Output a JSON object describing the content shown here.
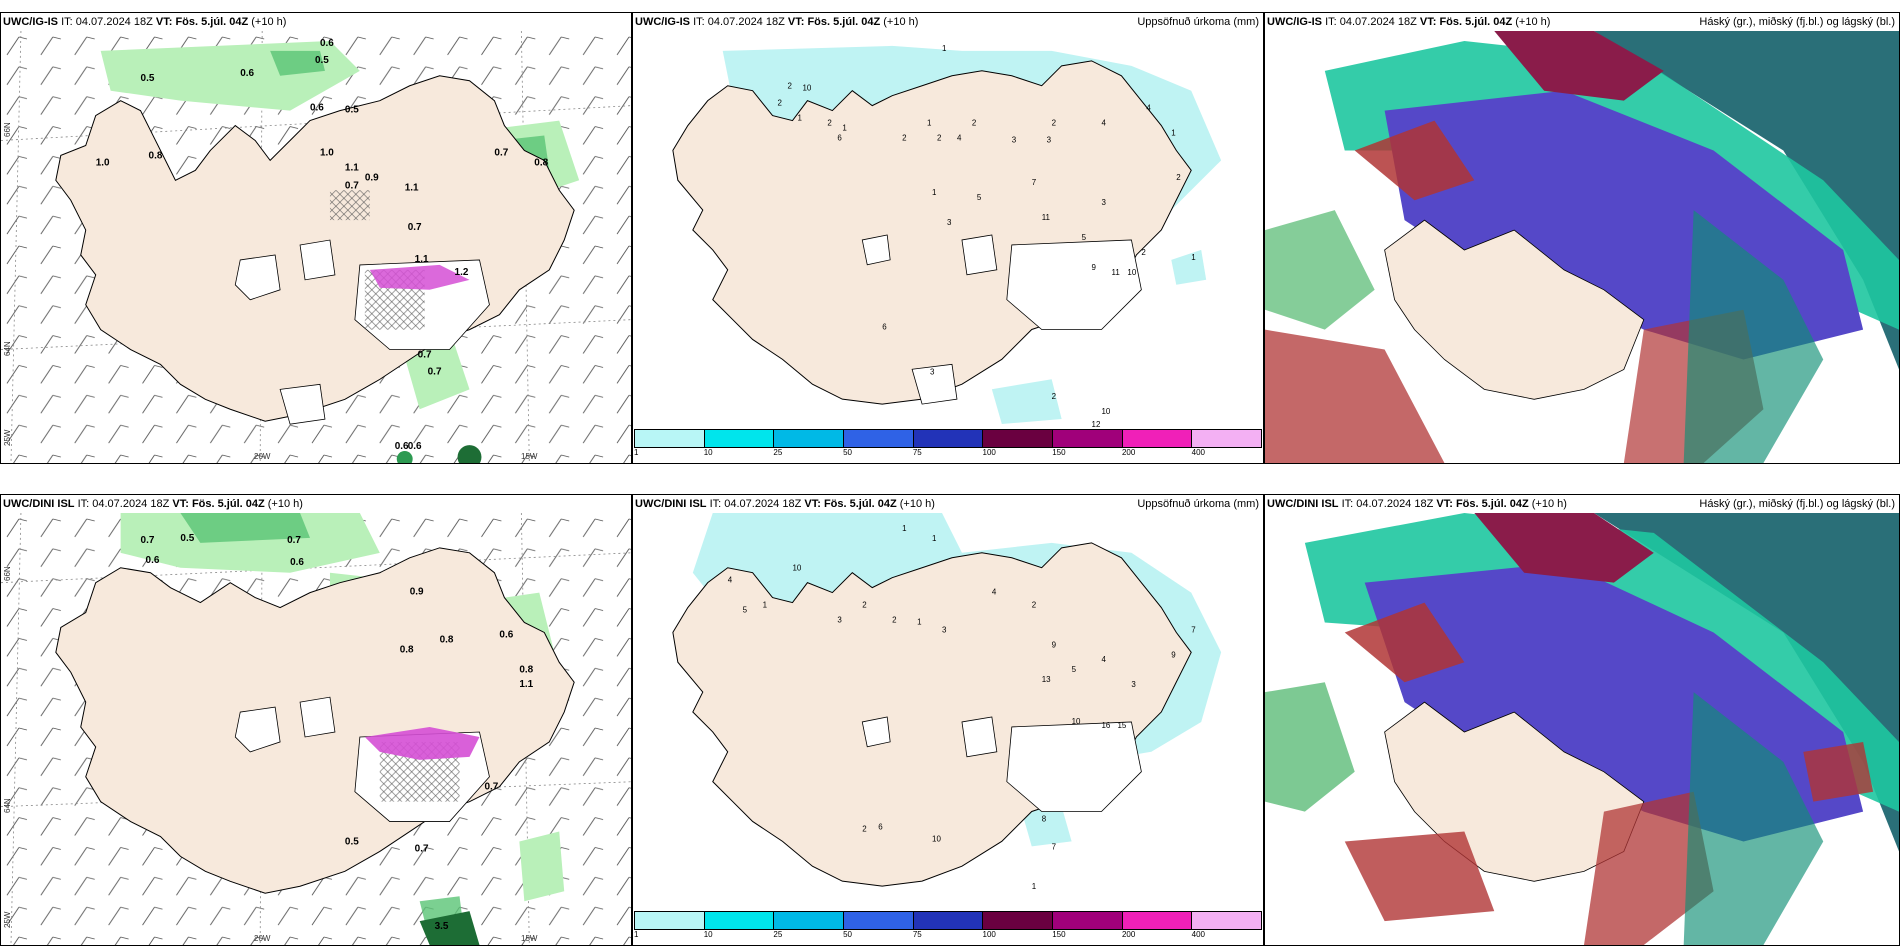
{
  "panels": [
    {
      "model": "UWC/IG-IS",
      "it_label": "IT:",
      "it": "04.07.2024 18Z",
      "vt_label": "VT:",
      "vt": "Fös. 5.júl. 04Z",
      "lead": "(+10 h)",
      "right": ""
    },
    {
      "model": "UWC/IG-IS",
      "it_label": "IT:",
      "it": "04.07.2024 18Z",
      "vt_label": "VT:",
      "vt": "Fös. 5.júl. 04Z",
      "lead": "(+10 h)",
      "right": "Uppsöfnuð úrkoma (mm)"
    },
    {
      "model": "UWC/IG-IS",
      "it_label": "IT:",
      "it": "04.07.2024 18Z",
      "vt_label": "VT:",
      "vt": "Fös. 5.júl. 04Z",
      "lead": "(+10 h)",
      "right": "Háský (gr.), miðský (fj.bl.) og lágský (bl.)"
    },
    {
      "model": "UWC/DINI ISL",
      "it_label": "IT:",
      "it": "04.07.2024 18Z",
      "vt_label": "VT:",
      "vt": "Fös. 5.júl. 04Z",
      "lead": "(+10 h)",
      "right": ""
    },
    {
      "model": "UWC/DINI ISL",
      "it_label": "IT:",
      "it": "04.07.2024 18Z",
      "vt_label": "VT:",
      "vt": "Fös. 5.júl. 04Z",
      "lead": "(+10 h)",
      "right": "Uppsöfnuð úrkoma (mm)"
    },
    {
      "model": "UWC/DINI ISL",
      "it_label": "IT:",
      "it": "04.07.2024 18Z",
      "vt_label": "VT:",
      "vt": "Fös. 5.júl. 04Z",
      "lead": "(+10 h)",
      "right": "Háský (gr.), miðský (fj.bl.) og lágský (bl.)"
    }
  ],
  "axes": {
    "lat_66": "66N",
    "lat_64": "64N",
    "lon_25": "25W",
    "lon_20": "20W",
    "lon_15": "15W"
  },
  "colorbar": {
    "ticks": [
      "1",
      "10",
      "25",
      "50",
      "75",
      "100",
      "150",
      "200",
      "400"
    ],
    "colors": [
      "#b8f6f6",
      "#00e5ec",
      "#00b9e6",
      "#2f62e6",
      "#2233b8",
      "#6a0040",
      "#a0007a",
      "#f020b8",
      "#f3b0f3"
    ]
  },
  "colors": {
    "land": "#f7e9dc",
    "rain_light": "#bff3f3",
    "green_light": "#b9f0b9",
    "green_dark": "#2d9a52",
    "snow": "#ffffff",
    "ice_pink": "#d54fd5",
    "cloud_high": "#1ec6a0",
    "cloud_mid": "#5548c8",
    "cloud_low": "#b03535",
    "cloud_sea": "#2a6f78"
  },
  "wind_values_top": [
    "0.5",
    "0.6",
    "0.5",
    "0.6",
    "0.6",
    "0.5",
    "0.8",
    "1.0",
    "1.0",
    "1.1",
    "0.9",
    "0.7",
    "1.1",
    "0.7",
    "0.8",
    "0.7",
    "1.1",
    "1.2",
    "0.7",
    "0.7",
    "0.6",
    "0.6"
  ],
  "wind_values_bottom": [
    "0.7",
    "0.5",
    "0.6",
    "0.7",
    "0.6",
    "0.9",
    "0.8",
    "0.8",
    "0.6",
    "1.1",
    "0.8",
    "0.7",
    "0.5",
    "0.7",
    "3.5"
  ],
  "rain_values_top": [
    "1",
    "2",
    "10",
    "2",
    "1",
    "2",
    "1",
    "6",
    "2",
    "1",
    "2",
    "4",
    "2",
    "3",
    "3",
    "2",
    "4",
    "7",
    "5",
    "1",
    "3",
    "11",
    "3",
    "5",
    "2",
    "2",
    "9",
    "11",
    "10",
    "1",
    "4",
    "6",
    "3",
    "1",
    "2",
    "10",
    "12"
  ],
  "rain_values_bottom": [
    "1",
    "1",
    "4",
    "10",
    "5",
    "1",
    "3",
    "2",
    "2",
    "1",
    "3",
    "4",
    "2",
    "9",
    "13",
    "5",
    "4",
    "3",
    "10",
    "16",
    "15",
    "9",
    "7",
    "2",
    "6",
    "10",
    "7",
    "1",
    "8"
  ]
}
